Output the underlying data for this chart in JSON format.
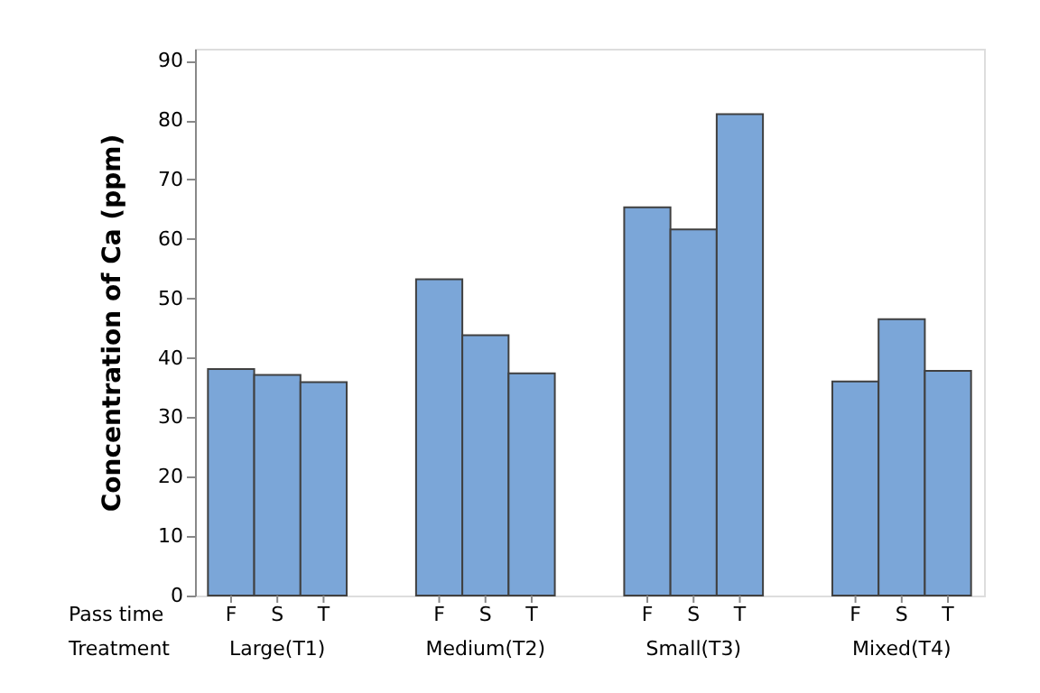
{
  "chart_data": {
    "type": "bar",
    "ylabel": "Concentration of Ca (ppm)",
    "xlabel": "Pass time",
    "categories": [
      "F",
      "S",
      "T",
      "F",
      "S",
      "T",
      "F",
      "S",
      "T",
      "F",
      "S",
      "T"
    ],
    "values": [
      38.1,
      37.1,
      35.9,
      53.2,
      43.8,
      37.4,
      65.3,
      61.6,
      81.0,
      36.0,
      46.5,
      37.8
    ],
    "color": "#7ba6d8",
    "ylim": [
      0,
      92
    ],
    "yticks": [
      0,
      10,
      20,
      30,
      40,
      50,
      60,
      70,
      80,
      90
    ],
    "grid": false,
    "annotations": [
      "Treatment",
      "Large(T1)",
      "Medium(T2)",
      "Small(T3)",
      "Mixed(T4)"
    ]
  }
}
